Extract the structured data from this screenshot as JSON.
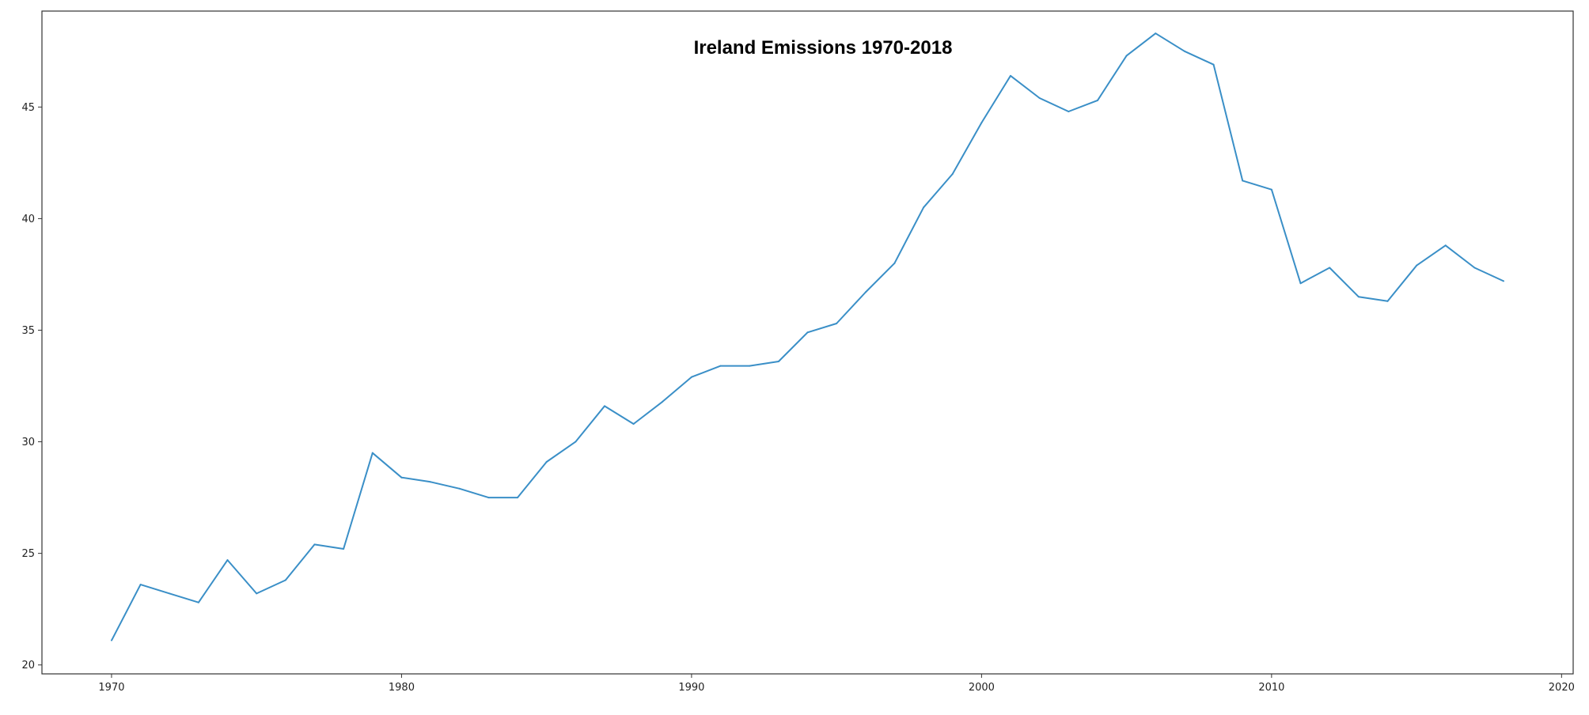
{
  "chart_data": {
    "type": "line",
    "title": "Ireland Emissions 1970-2018",
    "xlabel": "",
    "ylabel": "",
    "xlim": [
      1967.6,
      2020.4
    ],
    "ylim": [
      19.6,
      49.3
    ],
    "x_ticks": [
      1970,
      1980,
      1990,
      2000,
      2010,
      2020
    ],
    "y_ticks": [
      20,
      25,
      30,
      35,
      40,
      45
    ],
    "grid": false,
    "legend": "none",
    "line_color": "#3a8fc7",
    "series": [
      {
        "x": [
          1970,
          1971,
          1972,
          1973,
          1974,
          1975,
          1976,
          1977,
          1978,
          1979,
          1980,
          1981,
          1982,
          1983,
          1984,
          1985,
          1986,
          1987,
          1988,
          1989,
          1990,
          1991,
          1992,
          1993,
          1994,
          1995,
          1996,
          1997,
          1998,
          1999,
          2000,
          2001,
          2002,
          2003,
          2004,
          2005,
          2006,
          2007,
          2008,
          2009,
          2010,
          2011,
          2012,
          2013,
          2014,
          2015,
          2016,
          2017,
          2018
        ],
        "values": [
          21.1,
          23.6,
          23.2,
          22.8,
          24.7,
          23.2,
          23.8,
          25.4,
          25.2,
          29.5,
          28.4,
          28.2,
          27.9,
          27.5,
          27.5,
          29.1,
          30.0,
          31.6,
          30.8,
          31.8,
          32.9,
          33.4,
          33.4,
          33.6,
          34.9,
          35.3,
          36.7,
          38.0,
          40.5,
          42.0,
          44.3,
          46.4,
          45.4,
          44.8,
          45.3,
          47.3,
          48.3,
          47.5,
          46.9,
          41.7,
          41.3,
          37.1,
          37.8,
          36.5,
          36.3,
          37.9,
          38.8,
          37.8,
          37.2
        ]
      }
    ]
  }
}
